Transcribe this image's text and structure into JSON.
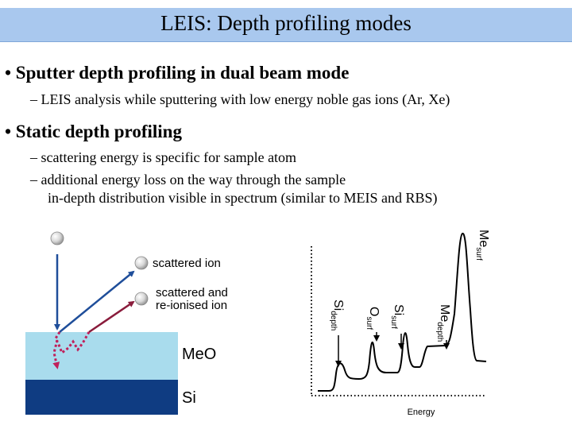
{
  "title": "LEIS:  Depth profiling modes",
  "bullets": [
    {
      "text": "• Sputter depth profiling in dual beam mode",
      "sub": [
        "– LEIS analysis while sputtering with low energy noble gas ions (Ar, Xe)"
      ]
    },
    {
      "text": "• Static depth profiling",
      "sub": [
        "– scattering energy is specific for sample atom",
        "– additional energy loss on the way through the sample",
        "in-depth distribution visible in spectrum (similar to MEIS and RBS)"
      ]
    }
  ],
  "diagram": {
    "scattered_ion": "scattered ion",
    "scattered_reionised_1": "scattered and",
    "scattered_reionised_2": "re-ionised ion",
    "layer_top": "MeO",
    "layer_bottom": "Si",
    "colors": {
      "meo": "#a9dced",
      "si": "#0f3c82",
      "ion_blue": "#1f4e9a",
      "ion_red": "#8a1c3c"
    }
  },
  "spectrum": {
    "xlabel": "Energy",
    "peaks": [
      {
        "main": "Me",
        "sub": "surf"
      },
      {
        "main": "Me",
        "sub": "depth"
      },
      {
        "main": "Si",
        "sub": "surf"
      },
      {
        "main": "O",
        "sub": "surf"
      },
      {
        "main": "Si",
        "sub": "depth"
      }
    ]
  }
}
